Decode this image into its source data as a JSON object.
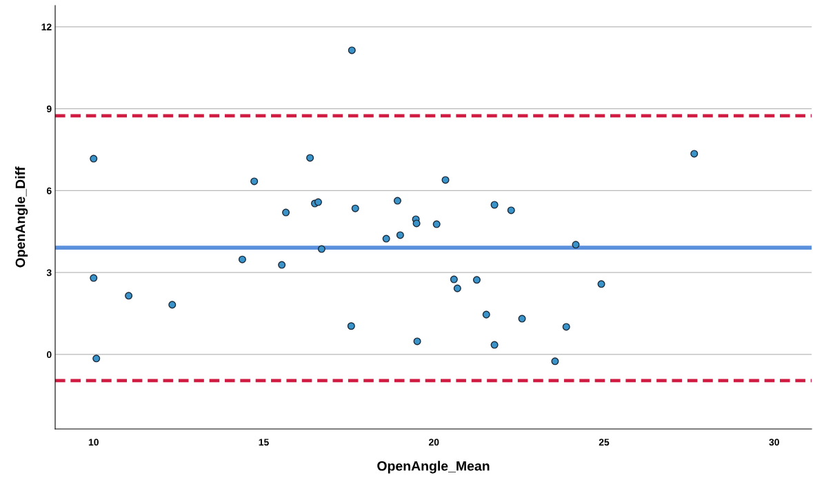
{
  "chart_data": {
    "type": "scatter",
    "xlabel": "OpenAngle_Mean",
    "ylabel": "OpenAngle_Diff",
    "x": [
      10.0,
      10.0,
      10.08,
      11.03,
      12.31,
      14.37,
      14.72,
      15.53,
      15.65,
      16.36,
      16.5,
      16.6,
      16.7,
      17.59,
      17.57,
      17.69,
      18.6,
      18.93,
      19.01,
      19.47,
      19.49,
      19.51,
      20.08,
      20.34,
      20.59,
      20.69,
      21.26,
      21.54,
      21.78,
      21.78,
      22.27,
      22.59,
      23.56,
      23.89,
      24.17,
      24.92,
      27.65
    ],
    "series": [
      {
        "color": "#3a93c9",
        "values": [
          7.17,
          2.8,
          -0.15,
          2.15,
          1.82,
          3.48,
          6.34,
          3.28,
          5.2,
          7.2,
          5.53,
          5.58,
          3.86,
          11.14,
          1.04,
          5.35,
          4.24,
          5.63,
          4.37,
          4.95,
          4.8,
          0.48,
          4.77,
          6.39,
          2.75,
          2.42,
          2.73,
          1.46,
          5.48,
          0.35,
          5.28,
          1.31,
          -0.25,
          1.01,
          4.02,
          2.58,
          7.35
        ]
      }
    ],
    "xlim": [
      8.87,
      31.1
    ],
    "xticks": [
      10,
      15,
      20,
      25,
      30
    ],
    "ylim": [
      -2.73,
      12.78
    ],
    "yticks": [
      0,
      3,
      6,
      9,
      12
    ],
    "grid": "y",
    "marker": "circle",
    "legend": false,
    "ref_lines": [
      {
        "axis": "y",
        "value": 3.91,
        "color": "#5b91dc",
        "line_style": "solid"
      },
      {
        "axis": "y",
        "value": 8.74,
        "color": "#d01c42",
        "line_style": "dashed"
      },
      {
        "axis": "y",
        "value": -0.96,
        "color": "#d01c42",
        "line_style": "dashed"
      }
    ]
  }
}
